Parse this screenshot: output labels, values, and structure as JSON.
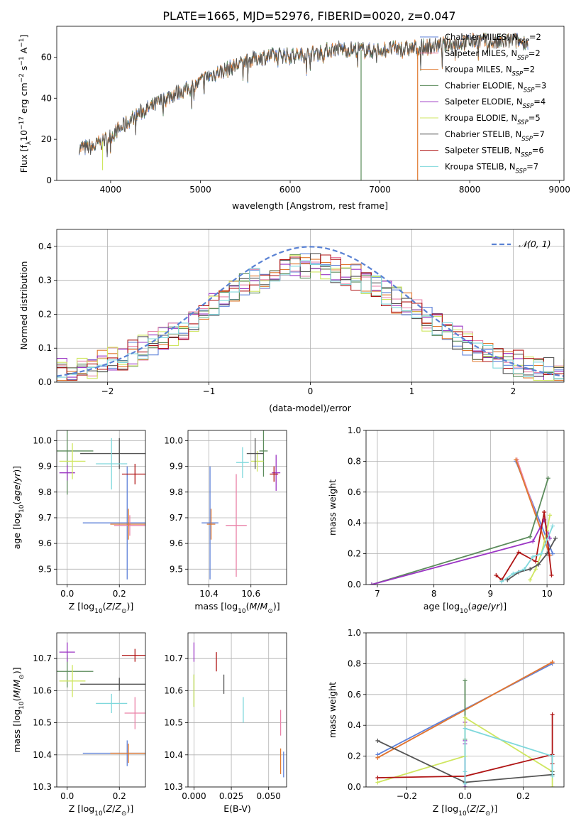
{
  "figure": {
    "title": "PLATE=1665, MJD=52976, FIBERID=0020, z=0.047"
  },
  "colors": {
    "series": [
      "#5f82d9",
      "#ea82a8",
      "#e0782f",
      "#5b8b5b",
      "#9b35c4",
      "#cfe660",
      "#555555",
      "#b01515",
      "#7fd8dc"
    ],
    "normal": "#5a82d4",
    "grid": "#b0b0b0"
  },
  "legend_labels": [
    [
      "Chabrier MILES, N",
      "SSP",
      "=2"
    ],
    [
      "Salpeter MILES, N",
      "SSP",
      "=2"
    ],
    [
      "Kroupa MILES, N",
      "SSP",
      "=2"
    ],
    [
      "Chabrier ELODIE, N",
      "SSP",
      "=3"
    ],
    [
      "Salpeter ELODIE, N",
      "SSP",
      "=4"
    ],
    [
      "Kroupa ELODIE, N",
      "SSP",
      "=5"
    ],
    [
      "Chabrier STELIB, N",
      "SSP",
      "=7"
    ],
    [
      "Salpeter STELIB, N",
      "SSP",
      "=6"
    ],
    [
      "Kroupa STELIB, N",
      "SSP",
      "=7"
    ]
  ],
  "chart_data": [
    {
      "id": "spectrum",
      "type": "line",
      "xlabel": "wavelength [Angstrom, rest frame]",
      "ylabel": "Flux [f_λ10^-17 erg cm^-2 s^-1 A^-1]",
      "xlim": [
        3400,
        9050
      ],
      "ylim": [
        0,
        75
      ],
      "xticks": [
        4000,
        5000,
        6000,
        7000,
        8000,
        9000
      ],
      "yticks": [
        0,
        20,
        40,
        60
      ],
      "grid": false,
      "legend": "right",
      "spectrum_trend": {
        "x": [
          3650,
          3800,
          3950,
          4100,
          4300,
          4500,
          4700,
          4900,
          5100,
          5300,
          5500,
          5700,
          5900,
          6100,
          6300,
          6500,
          6700,
          6900,
          7100,
          7300,
          7500,
          7700,
          7900,
          8100,
          8300,
          8500,
          8650
        ],
        "y": [
          16,
          16,
          20,
          25,
          32,
          37,
          42,
          45,
          51,
          54,
          58,
          60,
          61,
          61,
          62,
          64,
          64,
          63,
          64,
          64,
          65,
          66,
          67,
          68,
          67,
          68,
          67
        ]
      },
      "drops": [
        {
          "x": 6790,
          "y": 0
        },
        {
          "x": 7420,
          "y": 0
        },
        {
          "x": 3910,
          "y": 5
        }
      ]
    },
    {
      "id": "residuals",
      "type": "histogram",
      "xlabel": "(data-model)/error",
      "ylabel": "Normed distribution",
      "xlim": [
        -2.5,
        2.5
      ],
      "ylim": [
        0,
        0.45
      ],
      "xticks": [
        -2,
        -1,
        0,
        1,
        2
      ],
      "yticks": [
        0.0,
        0.1,
        0.2,
        0.3,
        0.4
      ],
      "grid": true,
      "legend": "upper right",
      "legend_label": "𝒩(0, 1)",
      "bin_width": 0.1
    },
    {
      "id": "age_vs_Z",
      "type": "errorbar",
      "xlabel": "Z [log10(Z/Z⊙)]",
      "ylabel": "age  [log10(age/yr)]",
      "xlim": [
        -0.04,
        0.3
      ],
      "ylim": [
        9.44,
        10.04
      ],
      "xticks": [
        0.0,
        0.2
      ],
      "yticks": [
        9.5,
        9.6,
        9.7,
        9.8,
        9.9,
        10.0
      ],
      "grid": true,
      "points": [
        {
          "x": 0.23,
          "y": 9.68,
          "xerr": 0.17,
          "yerr": 0.22
        },
        {
          "x": 0.24,
          "y": 9.67,
          "xerr": 0.06,
          "yerr": 0.04
        },
        {
          "x": 0.235,
          "y": 9.675,
          "xerr": 0.07,
          "yerr": 0.06
        },
        {
          "x": 0.0,
          "y": 9.96,
          "xerr": 0.1,
          "yerr": 0.17
        },
        {
          "x": 0.0,
          "y": 9.875,
          "xerr": 0.03,
          "yerr": 0.03
        },
        {
          "x": 0.02,
          "y": 9.92,
          "xerr": 0.05,
          "yerr": 0.07
        },
        {
          "x": 0.2,
          "y": 9.95,
          "xerr": 0.15,
          "yerr": 0.06
        },
        {
          "x": 0.26,
          "y": 9.87,
          "xerr": 0.05,
          "yerr": 0.04
        },
        {
          "x": 0.17,
          "y": 9.91,
          "xerr": 0.06,
          "yerr": 0.1
        }
      ]
    },
    {
      "id": "age_vs_mass",
      "type": "errorbar",
      "xlabel": "mass [log10(M/M⊙)]",
      "ylabel": "",
      "xlim": [
        10.3,
        10.77
      ],
      "ylim": [
        9.44,
        10.04
      ],
      "xticks": [
        10.4,
        10.6
      ],
      "yticks": [
        9.5,
        9.6,
        9.7,
        9.8,
        9.9,
        10.0
      ],
      "grid": true,
      "points": [
        {
          "x": 10.405,
          "y": 9.68,
          "xerr": 0.04,
          "yerr": 0.22
        },
        {
          "x": 10.53,
          "y": 9.67,
          "xerr": 0.05,
          "yerr": 0.2
        },
        {
          "x": 10.41,
          "y": 9.675,
          "xerr": 0.02,
          "yerr": 0.06
        },
        {
          "x": 10.66,
          "y": 9.96,
          "xerr": 0.02,
          "yerr": 0.1
        },
        {
          "x": 10.72,
          "y": 9.875,
          "xerr": 0.02,
          "yerr": 0.07
        },
        {
          "x": 10.63,
          "y": 9.92,
          "xerr": 0.03,
          "yerr": 0.04
        },
        {
          "x": 10.62,
          "y": 9.95,
          "xerr": 0.04,
          "yerr": 0.06
        },
        {
          "x": 10.71,
          "y": 9.87,
          "xerr": 0.02,
          "yerr": 0.03
        },
        {
          "x": 10.56,
          "y": 9.915,
          "xerr": 0.03,
          "yerr": 0.06
        }
      ]
    },
    {
      "id": "weight_vs_age",
      "type": "line",
      "xlabel": "age  [log10(age/yr)]",
      "ylabel": "mass weight",
      "xlim": [
        6.8,
        10.3
      ],
      "ylim": [
        0,
        1.0
      ],
      "xticks": [
        7,
        8,
        9,
        10
      ],
      "yticks": [
        0.0,
        0.2,
        0.4,
        0.6,
        0.8,
        1.0
      ],
      "grid": true,
      "series": [
        {
          "x": [
            9.45,
            10.1
          ],
          "y": [
            0.8,
            0.2
          ]
        },
        {
          "x": [
            9.47,
            10.05
          ],
          "y": [
            0.81,
            0.19
          ]
        },
        {
          "x": [
            9.45,
            10.05
          ],
          "y": [
            0.81,
            0.19
          ]
        },
        {
          "x": [
            6.9,
            9.7,
            10.02
          ],
          "y": [
            0.0,
            0.31,
            0.69
          ]
        },
        {
          "x": [
            6.9,
            9.75,
            9.95,
            10.05
          ],
          "y": [
            0.0,
            0.28,
            0.42,
            0.3
          ]
        },
        {
          "x": [
            9.7,
            9.8,
            9.9,
            10.0,
            10.05
          ],
          "y": [
            0.03,
            0.1,
            0.2,
            0.35,
            0.45
          ]
        },
        {
          "x": [
            9.3,
            9.5,
            9.7,
            9.85,
            10.0,
            10.15
          ],
          "y": [
            0.03,
            0.08,
            0.1,
            0.13,
            0.2,
            0.3
          ]
        },
        {
          "x": [
            9.1,
            9.2,
            9.5,
            9.8,
            9.95,
            10.08
          ],
          "y": [
            0.06,
            0.03,
            0.21,
            0.15,
            0.47,
            0.06
          ]
        },
        {
          "x": [
            9.2,
            9.4,
            9.6,
            9.75,
            9.9,
            10.1
          ],
          "y": [
            0.02,
            0.07,
            0.1,
            0.18,
            0.2,
            0.38
          ]
        }
      ]
    },
    {
      "id": "mass_vs_Z",
      "type": "errorbar",
      "xlabel": "Z [log10(Z/Z⊙)]",
      "ylabel": "mass [log10(M/M⊙)]",
      "xlim": [
        -0.04,
        0.3
      ],
      "ylim": [
        10.3,
        10.78
      ],
      "xticks": [
        0.0,
        0.2
      ],
      "yticks": [
        10.3,
        10.4,
        10.5,
        10.6,
        10.7
      ],
      "grid": true,
      "points": [
        {
          "x": 0.23,
          "y": 10.405,
          "xerr": 0.17,
          "yerr": 0.04
        },
        {
          "x": 0.26,
          "y": 10.53,
          "xerr": 0.04,
          "yerr": 0.05
        },
        {
          "x": 0.235,
          "y": 10.405,
          "xerr": 0.07,
          "yerr": 0.03
        },
        {
          "x": 0.0,
          "y": 10.66,
          "xerr": 0.1,
          "yerr": 0.05
        },
        {
          "x": 0.0,
          "y": 10.72,
          "xerr": 0.03,
          "yerr": 0.03
        },
        {
          "x": 0.02,
          "y": 10.63,
          "xerr": 0.05,
          "yerr": 0.05
        },
        {
          "x": 0.2,
          "y": 10.62,
          "xerr": 0.15,
          "yerr": 0.02
        },
        {
          "x": 0.26,
          "y": 10.71,
          "xerr": 0.05,
          "yerr": 0.02
        },
        {
          "x": 0.17,
          "y": 10.56,
          "xerr": 0.06,
          "yerr": 0.03
        }
      ]
    },
    {
      "id": "mass_vs_EBV",
      "type": "errorbar",
      "xlabel": "E(B-V)",
      "ylabel": "",
      "xlim": [
        -0.004,
        0.062
      ],
      "ylim": [
        10.3,
        10.78
      ],
      "xticks": [
        0.0,
        0.025,
        0.05
      ],
      "yticks": [
        10.3,
        10.4,
        10.5,
        10.6,
        10.7
      ],
      "grid": true,
      "points": [
        {
          "x": 0.06,
          "y": 10.37,
          "xerr": 0,
          "yerr": 0.04
        },
        {
          "x": 0.058,
          "y": 10.5,
          "xerr": 0,
          "yerr": 0.04
        },
        {
          "x": 0.058,
          "y": 10.38,
          "xerr": 0,
          "yerr": 0.04
        },
        {
          "x": 0.0,
          "y": 10.6,
          "xerr": 0,
          "yerr": 0.05
        },
        {
          "x": 0.0,
          "y": 10.72,
          "xerr": 0,
          "yerr": 0.03
        },
        {
          "x": 0.0,
          "y": 10.6,
          "xerr": 0,
          "yerr": 0.05
        },
        {
          "x": 0.02,
          "y": 10.62,
          "xerr": 0,
          "yerr": 0.03
        },
        {
          "x": 0.015,
          "y": 10.69,
          "xerr": 0,
          "yerr": 0.03
        },
        {
          "x": 0.033,
          "y": 10.54,
          "xerr": 0,
          "yerr": 0.04
        }
      ]
    },
    {
      "id": "weight_vs_Z",
      "type": "line",
      "xlabel": "Z [log10(Z/Z⊙)]",
      "ylabel": "mass weight",
      "xlim": [
        -0.34,
        0.34
      ],
      "ylim": [
        0,
        1.0
      ],
      "xticks": [
        -0.2,
        0.0,
        0.2
      ],
      "yticks": [
        0.0,
        0.2,
        0.4,
        0.6,
        0.8,
        1.0
      ],
      "grid": true,
      "series": [
        {
          "x": [
            -0.3,
            0.3
          ],
          "y": [
            0.21,
            0.8
          ]
        },
        {
          "x": [
            -0.3,
            0.3
          ],
          "y": [
            0.19,
            0.81
          ]
        },
        {
          "x": [
            -0.3,
            0.3
          ],
          "y": [
            0.19,
            0.81
          ]
        },
        {
          "x": [
            0.0,
            0.0,
            0.0
          ],
          "y": [
            0.0,
            0.31,
            0.69
          ]
        },
        {
          "x": [
            0.0,
            0.0,
            0.0,
            0.0
          ],
          "y": [
            0.0,
            0.28,
            0.42,
            0.3
          ]
        },
        {
          "x": [
            -0.3,
            0.0,
            0.0,
            0.3,
            0.3
          ],
          "y": [
            0.03,
            0.2,
            0.45,
            0.1,
            0.0
          ]
        },
        {
          "x": [
            -0.3,
            0.0,
            0.3,
            0.3,
            0.3
          ],
          "y": [
            0.3,
            0.03,
            0.08,
            0.2,
            0.1
          ]
        },
        {
          "x": [
            -0.3,
            0.0,
            0.3,
            0.3,
            0.3
          ],
          "y": [
            0.06,
            0.07,
            0.21,
            0.47,
            0.15
          ]
        },
        {
          "x": [
            0.0,
            0.0,
            0.0,
            0.3,
            0.3
          ],
          "y": [
            0.02,
            0.1,
            0.38,
            0.2,
            0.07
          ]
        }
      ]
    }
  ]
}
